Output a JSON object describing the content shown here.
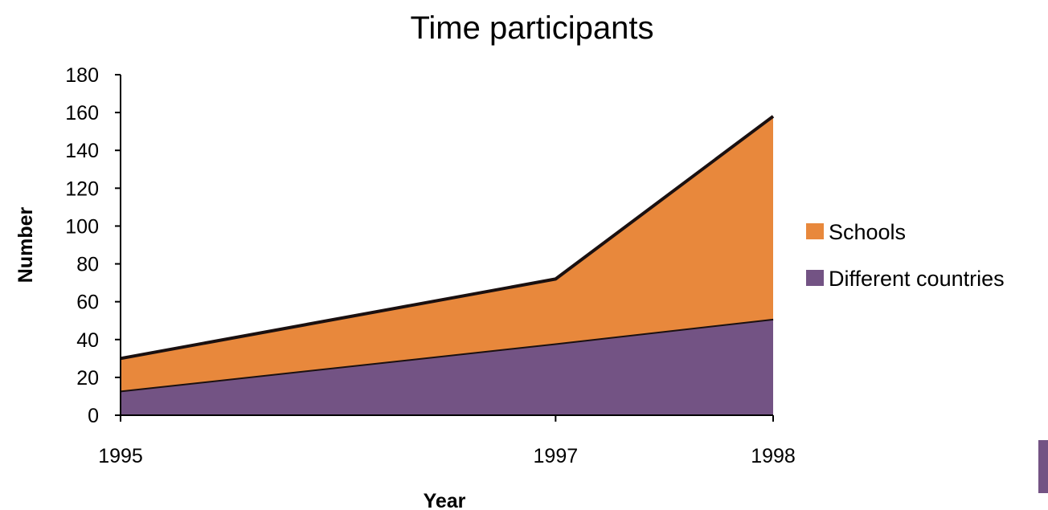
{
  "chart_data": {
    "type": "area",
    "stacked": true,
    "title": "Time participants",
    "xlabel": "Year",
    "ylabel": "Number",
    "categories": [
      "1995",
      "1997",
      "1998"
    ],
    "ylim": [
      0,
      180
    ],
    "yticks": [
      0,
      20,
      40,
      60,
      80,
      100,
      120,
      140,
      160,
      180
    ],
    "grid": false,
    "legend_position": "right",
    "series": [
      {
        "name": "Different countries",
        "values": [
          13,
          38,
          51
        ],
        "color": "#735384"
      },
      {
        "name": "Schools",
        "values": [
          17,
          34,
          107
        ],
        "color": "#E8883C"
      }
    ],
    "legend_order": [
      "Schools",
      "Different countries"
    ]
  }
}
